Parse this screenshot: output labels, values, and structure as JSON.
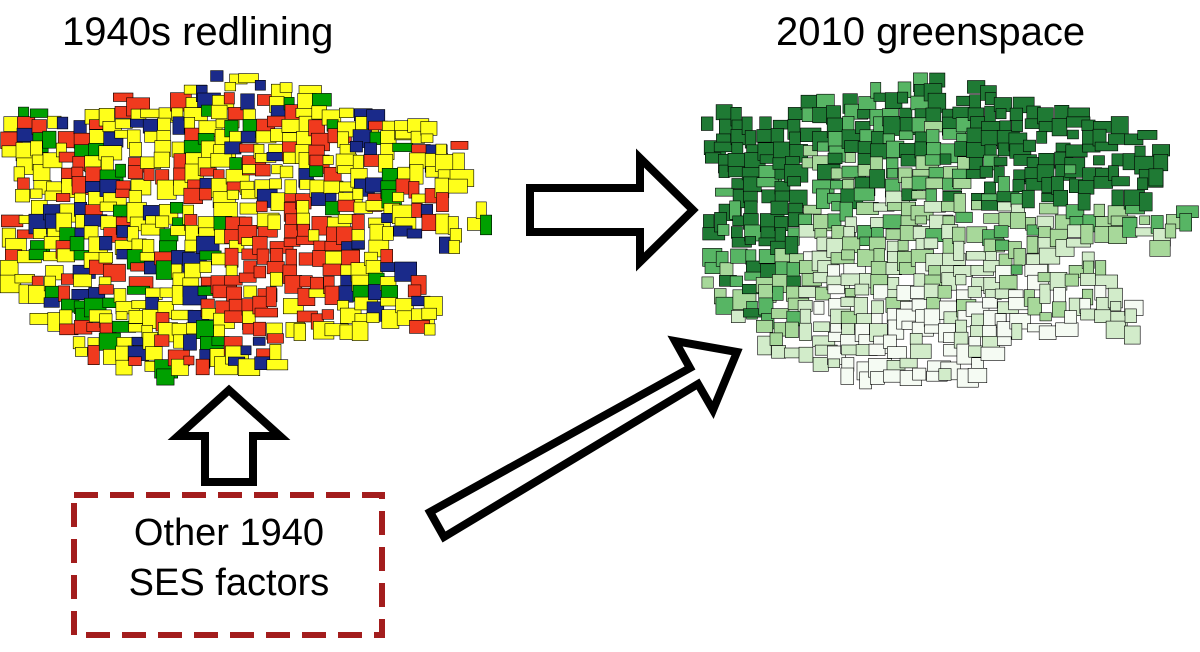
{
  "titles": {
    "left": "1940s redlining",
    "right": "2010 greenspace"
  },
  "confounder": {
    "line1": "Other 1940",
    "line2": "SES factors"
  },
  "colors": {
    "redlining_grades": [
      "#00a000",
      "#1a2a8a",
      "#ffff1a",
      "#f03a1e"
    ],
    "greenspace_ramp": [
      "#f5fbf3",
      "#d2ecca",
      "#a7d89a",
      "#57b564",
      "#1f7a34"
    ],
    "outline": "#000000",
    "confounder_border": "#a31d1d"
  }
}
